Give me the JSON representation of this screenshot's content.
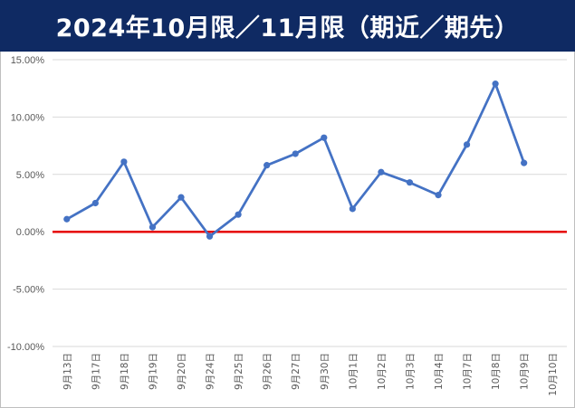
{
  "title": "2024年10月限／11月限（期近／期先）",
  "colors": {
    "title_bg": "#0f2a63",
    "title_text": "#ffffff",
    "series": "#4472c4",
    "zero_line": "#e60000",
    "grid": "#d9d9d9",
    "tick_text": "#595959"
  },
  "chart_data": {
    "type": "line",
    "title": "2024年10月限／11月限（期近／期先）",
    "xlabel": "",
    "ylabel": "",
    "categories": [
      "9月13日",
      "9月17日",
      "9月18日",
      "9月19日",
      "9月20日",
      "9月24日",
      "9月25日",
      "9月26日",
      "9月27日",
      "9月30日",
      "10月1日",
      "10月2日",
      "10月3日",
      "10月4日",
      "10月7日",
      "10月8日",
      "10月9日",
      "10月10日"
    ],
    "series": [
      {
        "values": [
          1.1,
          2.5,
          6.1,
          0.4,
          3.0,
          -0.4,
          1.5,
          5.8,
          6.8,
          8.2,
          2.0,
          5.2,
          4.3,
          3.2,
          7.6,
          12.9,
          6.0,
          null
        ]
      }
    ],
    "ylim": [
      -10,
      15
    ],
    "yticks": [
      15,
      10,
      5,
      0,
      -5,
      -10
    ],
    "ytick_labels": [
      "15.00%",
      "10.00%",
      "5.00%",
      "0.00%",
      "-5.00%",
      "-10.00%"
    ],
    "reference_line": 0,
    "grid": true,
    "legend": "none"
  }
}
